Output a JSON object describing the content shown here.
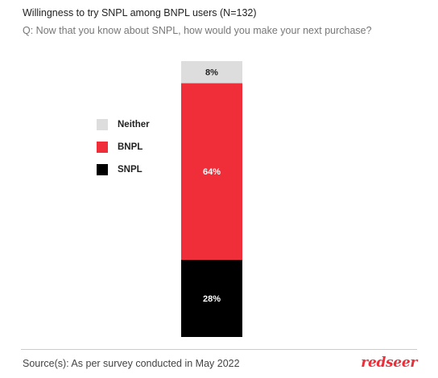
{
  "header": {
    "title": "Willingness to try SNPL among BNPL users  (N=132)",
    "subtitle": "Q: Now that you know about SNPL, how would you make your next purchase?"
  },
  "legend": [
    {
      "label": "Neither",
      "color": "#dddddd"
    },
    {
      "label": "BNPL",
      "color": "#ef2e3a"
    },
    {
      "label": "SNPL",
      "color": "#000000"
    }
  ],
  "chart_data": {
    "type": "bar",
    "stacked": true,
    "categories": [
      ""
    ],
    "series": [
      {
        "name": "SNPL",
        "values": [
          28
        ],
        "color": "#000000",
        "label": "28%",
        "label_color": "#ffffff"
      },
      {
        "name": "BNPL",
        "values": [
          64
        ],
        "color": "#ef2e3a",
        "label": "64%",
        "label_color": "#ffffff"
      },
      {
        "name": "Neither",
        "values": [
          8
        ],
        "color": "#dddddd",
        "label": "8%",
        "label_color": "#222222"
      }
    ],
    "ylim": [
      0,
      100
    ],
    "legend_position": "left",
    "grid": false
  },
  "footer": {
    "source": "Source(s): As per survey conducted in May 2022",
    "logo_text": "redseer"
  }
}
